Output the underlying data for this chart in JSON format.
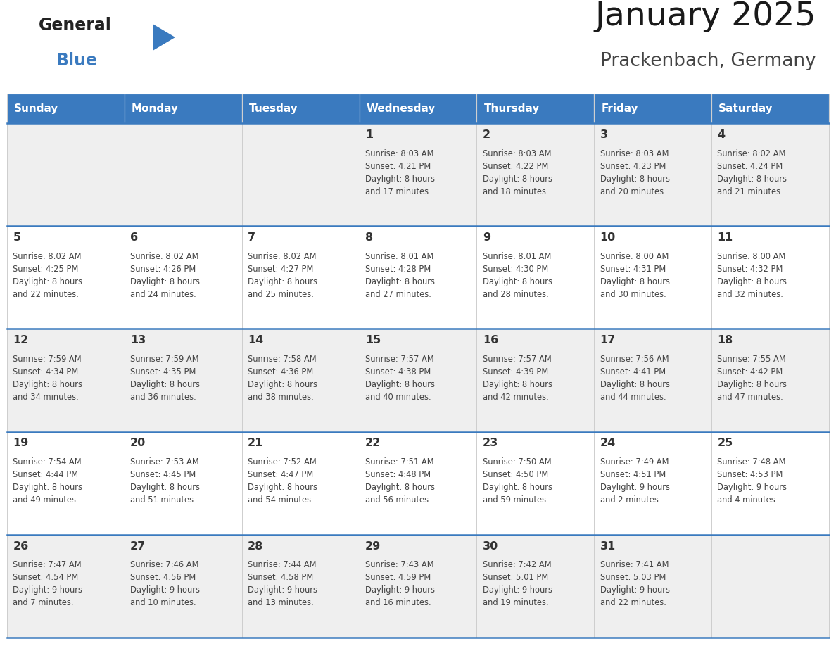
{
  "title": "January 2025",
  "subtitle": "Prackenbach, Germany",
  "days_of_week": [
    "Sunday",
    "Monday",
    "Tuesday",
    "Wednesday",
    "Thursday",
    "Friday",
    "Saturday"
  ],
  "header_bg": "#3a7abf",
  "header_text_color": "#ffffff",
  "cell_bg_odd": "#efefef",
  "cell_bg_even": "#ffffff",
  "cell_text_color": "#444444",
  "day_num_color": "#333333",
  "border_color": "#3a7abf",
  "logo_general_color": "#222222",
  "logo_blue_color": "#3a7abf",
  "calendar": [
    [
      null,
      null,
      null,
      {
        "day": 1,
        "sunrise": "8:03 AM",
        "sunset": "4:21 PM",
        "daylight": "8 hours and 17 minutes"
      },
      {
        "day": 2,
        "sunrise": "8:03 AM",
        "sunset": "4:22 PM",
        "daylight": "8 hours and 18 minutes"
      },
      {
        "day": 3,
        "sunrise": "8:03 AM",
        "sunset": "4:23 PM",
        "daylight": "8 hours and 20 minutes"
      },
      {
        "day": 4,
        "sunrise": "8:02 AM",
        "sunset": "4:24 PM",
        "daylight": "8 hours and 21 minutes"
      }
    ],
    [
      {
        "day": 5,
        "sunrise": "8:02 AM",
        "sunset": "4:25 PM",
        "daylight": "8 hours and 22 minutes"
      },
      {
        "day": 6,
        "sunrise": "8:02 AM",
        "sunset": "4:26 PM",
        "daylight": "8 hours and 24 minutes"
      },
      {
        "day": 7,
        "sunrise": "8:02 AM",
        "sunset": "4:27 PM",
        "daylight": "8 hours and 25 minutes"
      },
      {
        "day": 8,
        "sunrise": "8:01 AM",
        "sunset": "4:28 PM",
        "daylight": "8 hours and 27 minutes"
      },
      {
        "day": 9,
        "sunrise": "8:01 AM",
        "sunset": "4:30 PM",
        "daylight": "8 hours and 28 minutes"
      },
      {
        "day": 10,
        "sunrise": "8:00 AM",
        "sunset": "4:31 PM",
        "daylight": "8 hours and 30 minutes"
      },
      {
        "day": 11,
        "sunrise": "8:00 AM",
        "sunset": "4:32 PM",
        "daylight": "8 hours and 32 minutes"
      }
    ],
    [
      {
        "day": 12,
        "sunrise": "7:59 AM",
        "sunset": "4:34 PM",
        "daylight": "8 hours and 34 minutes"
      },
      {
        "day": 13,
        "sunrise": "7:59 AM",
        "sunset": "4:35 PM",
        "daylight": "8 hours and 36 minutes"
      },
      {
        "day": 14,
        "sunrise": "7:58 AM",
        "sunset": "4:36 PM",
        "daylight": "8 hours and 38 minutes"
      },
      {
        "day": 15,
        "sunrise": "7:57 AM",
        "sunset": "4:38 PM",
        "daylight": "8 hours and 40 minutes"
      },
      {
        "day": 16,
        "sunrise": "7:57 AM",
        "sunset": "4:39 PM",
        "daylight": "8 hours and 42 minutes"
      },
      {
        "day": 17,
        "sunrise": "7:56 AM",
        "sunset": "4:41 PM",
        "daylight": "8 hours and 44 minutes"
      },
      {
        "day": 18,
        "sunrise": "7:55 AM",
        "sunset": "4:42 PM",
        "daylight": "8 hours and 47 minutes"
      }
    ],
    [
      {
        "day": 19,
        "sunrise": "7:54 AM",
        "sunset": "4:44 PM",
        "daylight": "8 hours and 49 minutes"
      },
      {
        "day": 20,
        "sunrise": "7:53 AM",
        "sunset": "4:45 PM",
        "daylight": "8 hours and 51 minutes"
      },
      {
        "day": 21,
        "sunrise": "7:52 AM",
        "sunset": "4:47 PM",
        "daylight": "8 hours and 54 minutes"
      },
      {
        "day": 22,
        "sunrise": "7:51 AM",
        "sunset": "4:48 PM",
        "daylight": "8 hours and 56 minutes"
      },
      {
        "day": 23,
        "sunrise": "7:50 AM",
        "sunset": "4:50 PM",
        "daylight": "8 hours and 59 minutes"
      },
      {
        "day": 24,
        "sunrise": "7:49 AM",
        "sunset": "4:51 PM",
        "daylight": "9 hours and 2 minutes"
      },
      {
        "day": 25,
        "sunrise": "7:48 AM",
        "sunset": "4:53 PM",
        "daylight": "9 hours and 4 minutes"
      }
    ],
    [
      {
        "day": 26,
        "sunrise": "7:47 AM",
        "sunset": "4:54 PM",
        "daylight": "9 hours and 7 minutes"
      },
      {
        "day": 27,
        "sunrise": "7:46 AM",
        "sunset": "4:56 PM",
        "daylight": "9 hours and 10 minutes"
      },
      {
        "day": 28,
        "sunrise": "7:44 AM",
        "sunset": "4:58 PM",
        "daylight": "9 hours and 13 minutes"
      },
      {
        "day": 29,
        "sunrise": "7:43 AM",
        "sunset": "4:59 PM",
        "daylight": "9 hours and 16 minutes"
      },
      {
        "day": 30,
        "sunrise": "7:42 AM",
        "sunset": "5:01 PM",
        "daylight": "9 hours and 19 minutes"
      },
      {
        "day": 31,
        "sunrise": "7:41 AM",
        "sunset": "5:03 PM",
        "daylight": "9 hours and 22 minutes"
      },
      null
    ]
  ]
}
